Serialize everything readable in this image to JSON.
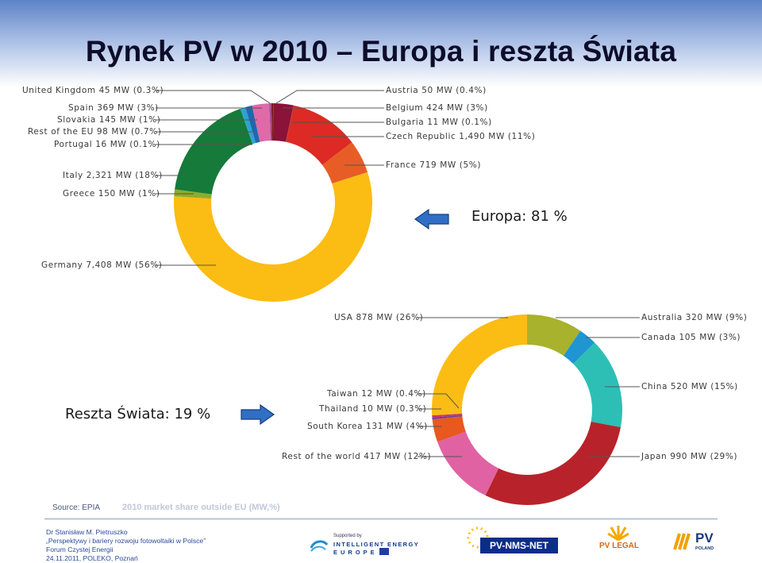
{
  "title": "Rynek PV w 2010 – Europa i reszta Świata",
  "colors": {
    "arrow_fill": "#2f6fc6",
    "arrow_stroke": "#163f7a"
  },
  "europe": {
    "summary": "Europa: 81 %"
  },
  "world": {
    "summary": "Reszta Świata: 19 %"
  },
  "source": "Source: EPIA",
  "caption": "2010 market share outside EU (MW,%)",
  "footer": {
    "author": "Dr Stanisław M. Pietruszko",
    "talk": "„Perspektywy i bariery rozwoju fotowoltaiki w Polsce”",
    "event": "Forum Czystej Energii",
    "date_place": "24.11.2011, POLEKO, Poznań"
  },
  "logos": {
    "iee_supported": "Supported by",
    "iee_line1": "INTELLIGENT ENERGY",
    "iee_line2": "EUROPE",
    "pvnms": "PV-NMS-NET",
    "pvlegal": "PV LEGAL",
    "pvpoland_1": "PV",
    "pvpoland_2": "POLAND"
  },
  "chart_data": [
    {
      "type": "pie",
      "title": "",
      "donut": true,
      "series": [
        {
          "name": "Austria",
          "label": "Austria 50 MW (0.4%)",
          "value": 50,
          "color": "#7f1d1d"
        },
        {
          "name": "Belgium",
          "label": "Belgium 424 MW (3%)",
          "value": 424,
          "color": "#8b1238"
        },
        {
          "name": "Bulgaria",
          "label": "Bulgaria 11 MW (0.1%)",
          "value": 11,
          "color": "#b01e30"
        },
        {
          "name": "Czech Republic",
          "label": "Czech Republic 1,490 MW (11%)",
          "value": 1490,
          "color": "#dd2a24"
        },
        {
          "name": "France",
          "label": "France 719 MW (5%)",
          "value": 719,
          "color": "#e85d26"
        },
        {
          "name": "Germany",
          "label": "Germany 7,408 MW (56%)",
          "value": 7408,
          "color": "#fbbc14"
        },
        {
          "name": "Greece",
          "label": "Greece 150 MW (1%)",
          "value": 150,
          "color": "#8fac2a"
        },
        {
          "name": "Italy",
          "label": "Italy 2,321 MW (18%)",
          "value": 2321,
          "color": "#157a3a"
        },
        {
          "name": "Portugal",
          "label": "Portugal 16 MW (0.1%)",
          "value": 16,
          "color": "#1aa6a6"
        },
        {
          "name": "Rest of the EU",
          "label": "Rest of the EU 98 MW (0.7%)",
          "value": 98,
          "color": "#2aa3d6"
        },
        {
          "name": "Slovakia",
          "label": "Slovakia 145 MW (1%)",
          "value": 145,
          "color": "#2266b0"
        },
        {
          "name": "Spain",
          "label": "Spain 369 MW (3%)",
          "value": 369,
          "color": "#e06aa8"
        },
        {
          "name": "United Kingdom",
          "label": "United Kingdom 45 MW (0.3%)",
          "value": 45,
          "color": "#a14e8c"
        }
      ]
    },
    {
      "type": "pie",
      "title": "2010 market share outside EU (MW,%)",
      "donut": true,
      "series": [
        {
          "name": "Australia",
          "label": "Australia 320 MW (9%)",
          "value": 320,
          "color": "#a8b22c"
        },
        {
          "name": "Canada",
          "label": "Canada 105 MW (3%)",
          "value": 105,
          "color": "#1f95d2"
        },
        {
          "name": "China",
          "label": "China 520 MW (15%)",
          "value": 520,
          "color": "#2dbfb6"
        },
        {
          "name": "Japan",
          "label": "Japan 990 MW (29%)",
          "value": 990,
          "color": "#b8232b"
        },
        {
          "name": "Rest of the world",
          "label": "Rest of the world 417 MW (12%)",
          "value": 417,
          "color": "#e062a2"
        },
        {
          "name": "South Korea",
          "label": "South Korea 131 MW (4%)",
          "value": 131,
          "color": "#e8581f"
        },
        {
          "name": "Thailand",
          "label": "Thailand 10 MW (0.3%)",
          "value": 10,
          "color": "#6a3d9a"
        },
        {
          "name": "Taiwan",
          "label": "Taiwan 12 MW (0.4%)",
          "value": 12,
          "color": "#c03870"
        },
        {
          "name": "USA",
          "label": "USA 878 MW (26%)",
          "value": 878,
          "color": "#fbbc14"
        }
      ]
    }
  ]
}
